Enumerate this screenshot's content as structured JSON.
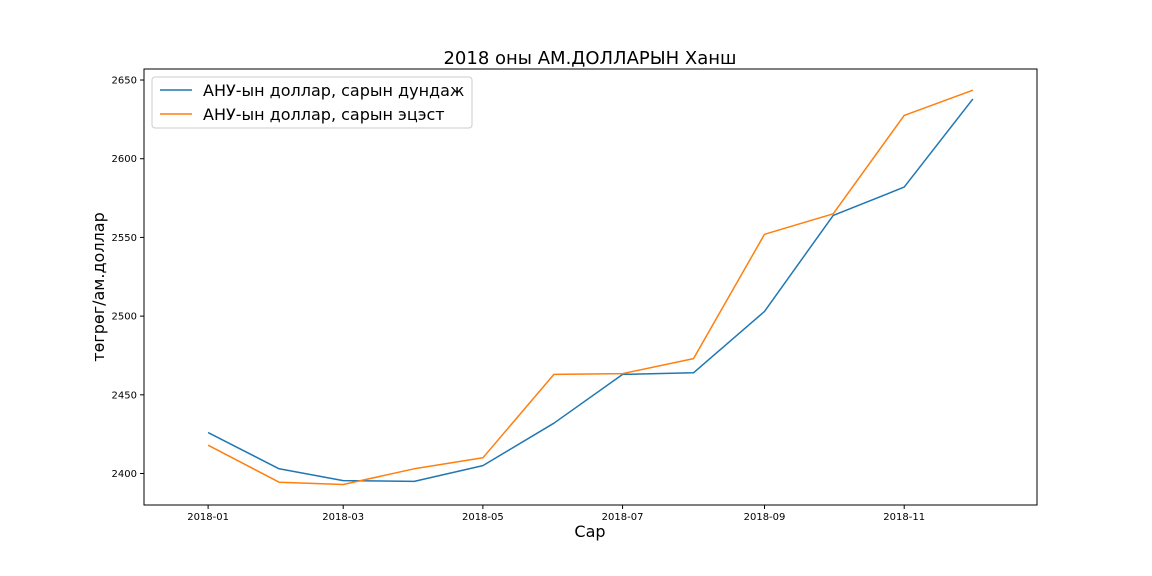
{
  "chart_data": {
    "type": "line",
    "title": "2018 оны АМ.ДОЛЛАРЫН Ханш",
    "xlabel": "Сар",
    "ylabel": "төгрөг/ам.доллар",
    "x": [
      "2018-01-01",
      "2018-02-01",
      "2018-03-01",
      "2018-04-01",
      "2018-05-01",
      "2018-06-01",
      "2018-07-01",
      "2018-08-01",
      "2018-09-01",
      "2018-10-01",
      "2018-11-01",
      "2018-12-01"
    ],
    "x_ticks": [
      "2018-01",
      "2018-03",
      "2018-05",
      "2018-07",
      "2018-09",
      "2018-11"
    ],
    "y_ticks": [
      2400,
      2450,
      2500,
      2550,
      2600,
      2650
    ],
    "ylim": [
      2380,
      2657
    ],
    "legend_position": "upper-left",
    "grid": false,
    "series": [
      {
        "name": "АНУ-ын доллар, сарын дундаж",
        "color": "#1f77b4",
        "values": [
          2426,
          2403,
          2395.5,
          2395,
          2405,
          2432,
          2463,
          2464,
          2503,
          2564,
          2582,
          2638
        ]
      },
      {
        "name": "АНУ-ын доллар, сарын эцэст",
        "color": "#ff7f0e",
        "values": [
          2418,
          2394.5,
          2393,
          2403,
          2410,
          2463,
          2463.5,
          2473,
          2552,
          2565,
          2627.5,
          2643.5
        ]
      }
    ]
  }
}
